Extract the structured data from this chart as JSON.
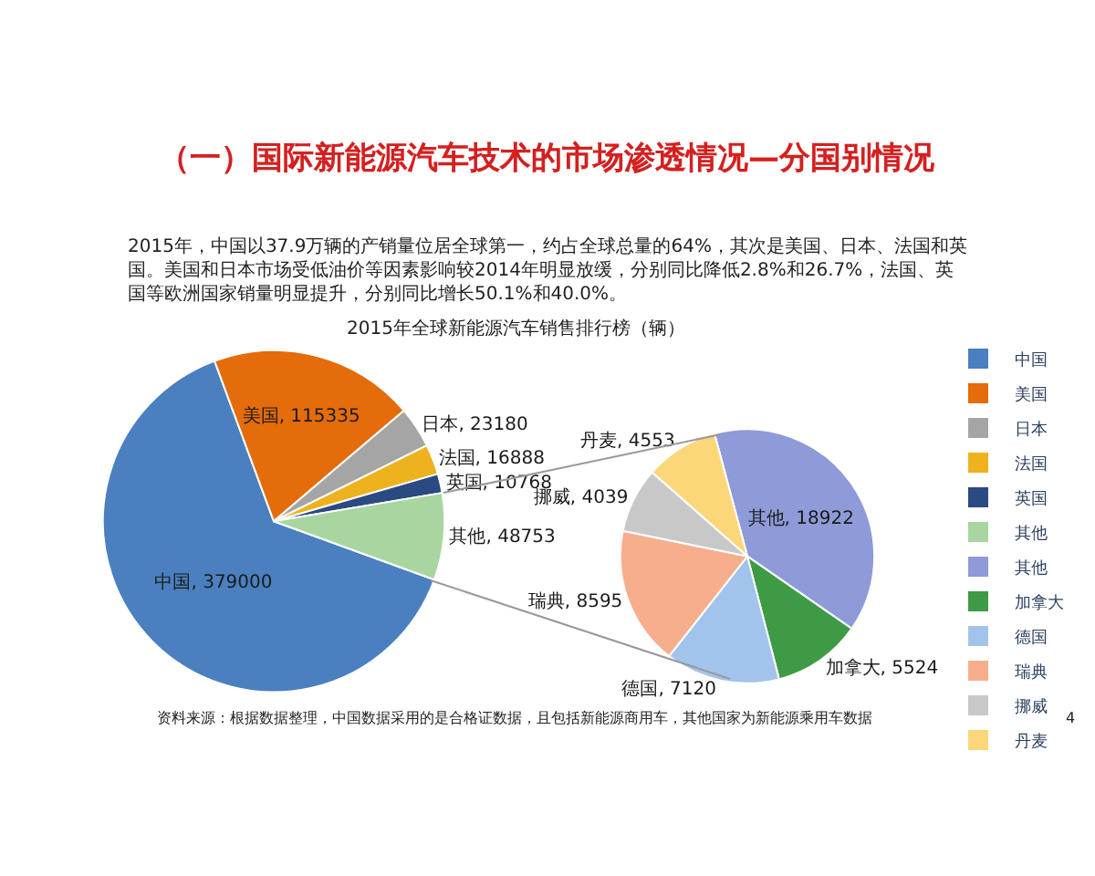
{
  "chart_data": [
    {
      "type": "pie",
      "title": "（一）国际新能源汽车技术的市场渗透情况—分国别情况",
      "subtitle": "2015年，中国以37.9万辆的产销量位居全球第一，约占全球总量的64%，其次是美国、日本、法国和英国。美国和日本市场受低油价等因素影响较2014年明显放缓，分别同比降低2.8%和26.7%，法国、英国等欧洲国家销量明显提升，分别同比增长50.1%和40.0%。",
      "annotations": [
        "2015年全球新能源汽车销售排行榜（辆）",
        "资料来源：根据数据整理，中国数据采用的是合格证数据，且包括新能源商用车，其他国家为新能源乘用车数据",
        "4"
      ],
      "categories": [
        "中国",
        "美国",
        "日本",
        "法国",
        "英国",
        "其他"
      ],
      "values": [
        379000,
        115335,
        23180,
        16888,
        10768,
        48753
      ],
      "colors": [
        "#4a80c0",
        "#e46c0a",
        "#a5a5a5",
        "#efb21f",
        "#2a4a82",
        "#a8d5a0"
      ],
      "value_labels": [
        "中国, 379000",
        "美国, 115335",
        "日本, 23180",
        "法国, 16888",
        "英国, 10768",
        "其他, 48753"
      ],
      "legend": "right"
    },
    {
      "type": "pie",
      "categories": [
        "其他",
        "加拿大",
        "德国",
        "瑞典",
        "挪威",
        "丹麦"
      ],
      "values": [
        18922,
        5524,
        7120,
        8595,
        4039,
        4553
      ],
      "colors": [
        "#8e9bd8",
        "#3f9a45",
        "#a2c4ec",
        "#f7ae8c",
        "#c8c8c8",
        "#fcd77a"
      ],
      "value_labels": [
        "其他, 18922",
        "加拿大, 5524",
        "德国, 7120",
        "瑞典, 8595",
        "挪威, 4039",
        "丹麦, 4553"
      ],
      "legend": "right"
    }
  ]
}
